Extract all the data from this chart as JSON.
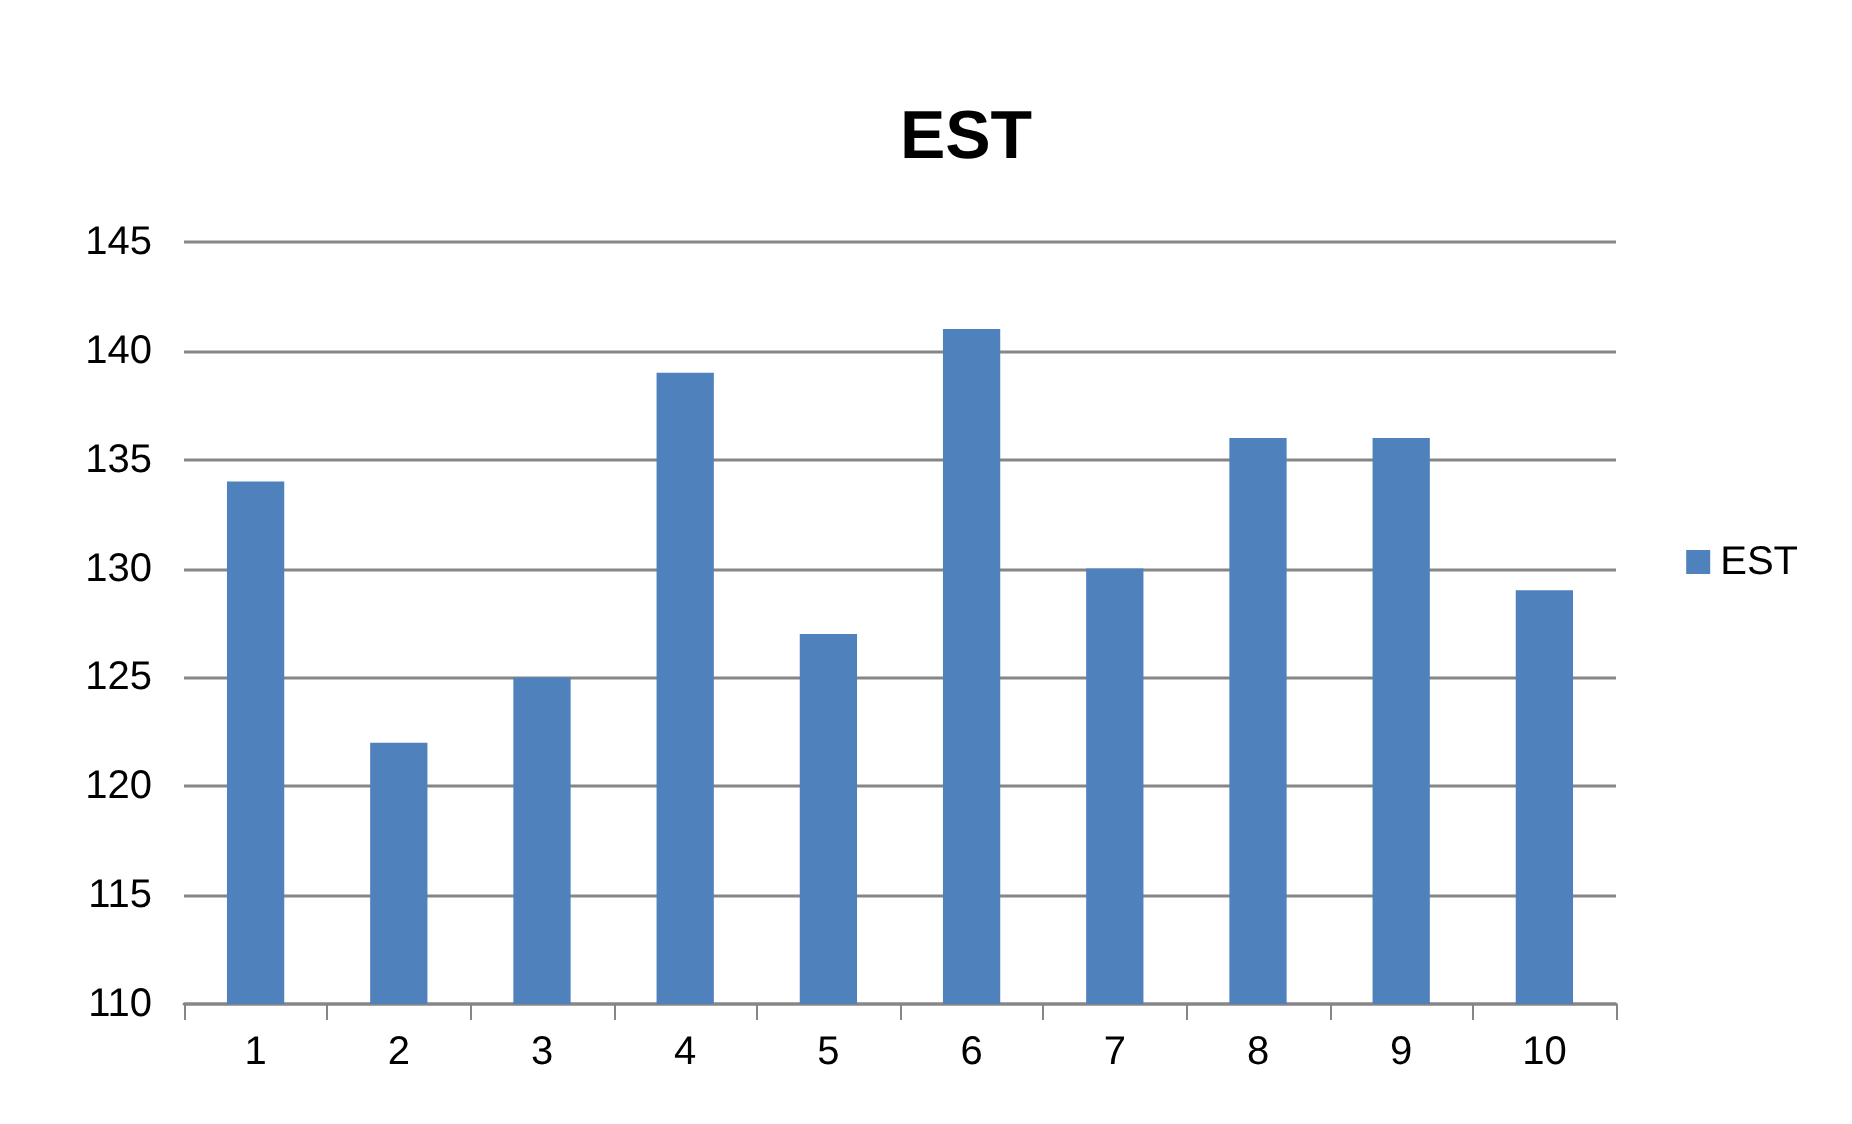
{
  "chart_data": {
    "type": "bar",
    "title": "EST",
    "categories": [
      "1",
      "2",
      "3",
      "4",
      "5",
      "6",
      "7",
      "8",
      "9",
      "10"
    ],
    "series": [
      {
        "name": "EST",
        "color": "#4f81bd",
        "values": [
          134,
          122,
          125,
          139,
          127,
          141,
          130,
          136,
          136,
          129
        ]
      }
    ],
    "ylim": [
      110,
      145
    ],
    "yticks": [
      110,
      115,
      120,
      125,
      130,
      135,
      140,
      145
    ],
    "grid": "y",
    "legend": "right"
  }
}
